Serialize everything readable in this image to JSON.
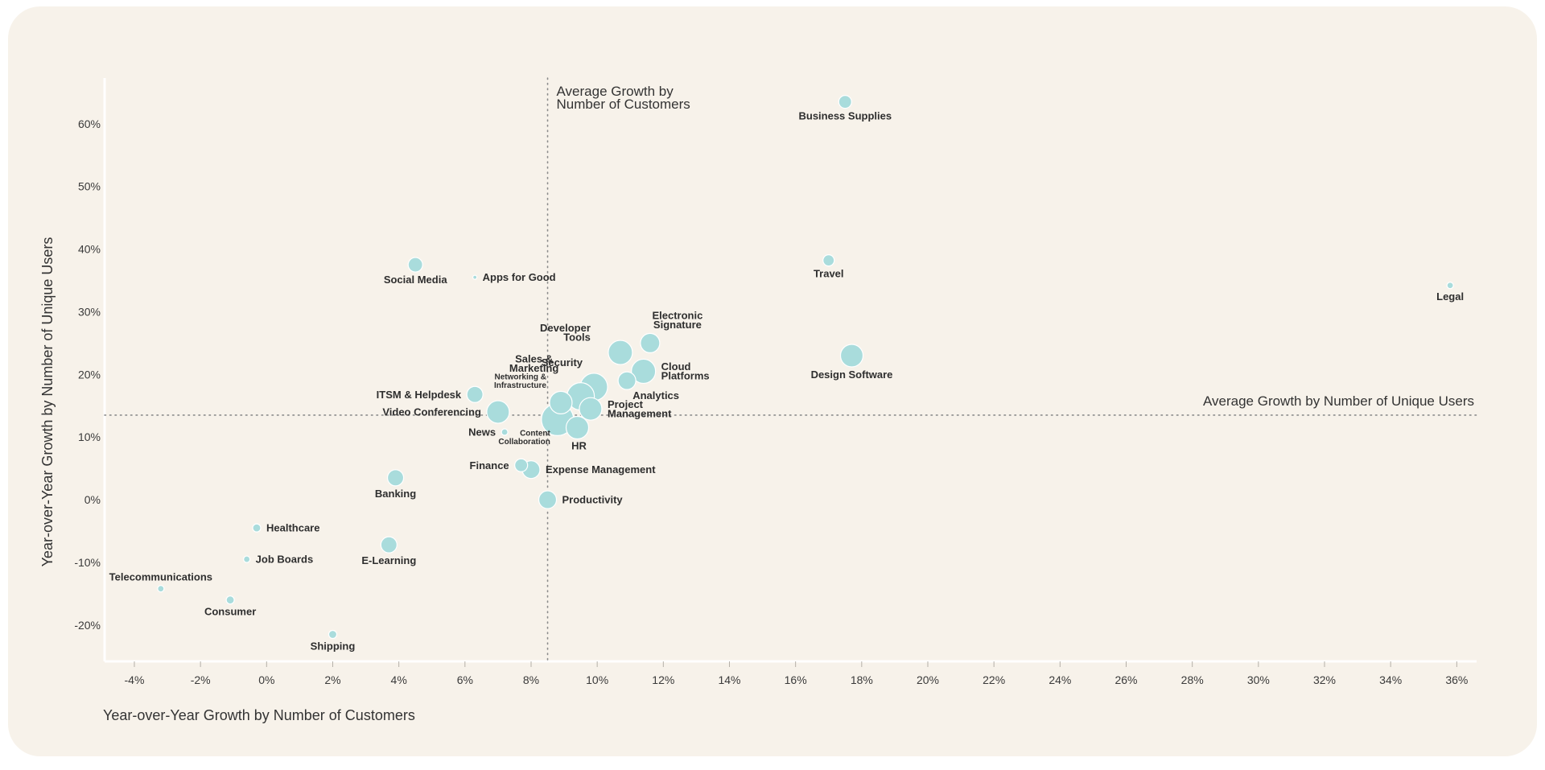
{
  "colors": {
    "background": "#f7f2ea",
    "bubble": "#a9dcdc",
    "text": "#2e2e2e"
  },
  "chart_data": {
    "type": "scatter",
    "title": "",
    "xlabel": "Year-over-Year Growth by Number of Customers",
    "ylabel": "Year-over-Year Growth by Number of Unique Users",
    "xlim": [
      -4.9,
      36.6
    ],
    "ylim": [
      -25.8,
      67.3
    ],
    "xticks": [
      -4,
      -2,
      0,
      2,
      4,
      6,
      8,
      10,
      12,
      14,
      16,
      18,
      20,
      22,
      24,
      26,
      28,
      30,
      32,
      34,
      36
    ],
    "xtick_labels": [
      "-4%",
      "-2%",
      "0%",
      "2%",
      "4%",
      "6%",
      "8%",
      "10%",
      "12%",
      "14%",
      "16%",
      "18%",
      "20%",
      "22%",
      "24%",
      "26%",
      "28%",
      "30%",
      "32%",
      "34%",
      "36%"
    ],
    "yticks": [
      60,
      50,
      40,
      30,
      20,
      10,
      0,
      -10,
      -20
    ],
    "ytick_labels": [
      "60%",
      "50%",
      "40%",
      "30%",
      "20%",
      "10%",
      "0%",
      "-10%",
      "-20%"
    ],
    "grid": false,
    "reference_lines": [
      {
        "axis": "x",
        "value": 8.5,
        "label_lines": [
          "Average Growth by",
          "Number of Customers"
        ]
      },
      {
        "axis": "y",
        "value": 13.5,
        "label_lines": [
          "Average Growth by Number of Unique Users"
        ]
      }
    ],
    "points": [
      {
        "name": "Business Supplies",
        "label_lines": [
          "Business Supplies"
        ],
        "x": 17.5,
        "y": 63.5,
        "size": 8,
        "label_pos": "below"
      },
      {
        "name": "Travel",
        "label_lines": [
          "Travel"
        ],
        "x": 17.0,
        "y": 38.2,
        "size": 7,
        "label_pos": "below"
      },
      {
        "name": "Legal",
        "label_lines": [
          "Legal"
        ],
        "x": 35.8,
        "y": 34.2,
        "size": 4,
        "label_pos": "below"
      },
      {
        "name": "Design Software",
        "label_lines": [
          "Design Software"
        ],
        "x": 17.7,
        "y": 23.0,
        "size": 14,
        "label_pos": "below"
      },
      {
        "name": "Social Media",
        "label_lines": [
          "Social Media"
        ],
        "x": 4.5,
        "y": 37.5,
        "size": 9,
        "label_pos": "below"
      },
      {
        "name": "Apps for Good",
        "label_lines": [
          "Apps for Good"
        ],
        "x": 6.3,
        "y": 35.5,
        "size": 2.5,
        "label_pos": "right"
      },
      {
        "name": "Developer Tools",
        "label_lines": [
          "Developer",
          "Tools"
        ],
        "x": 10.7,
        "y": 23.5,
        "size": 15,
        "label_pos": "upper-left"
      },
      {
        "name": "Electronic Signature",
        "label_lines": [
          "Electronic",
          "Signature"
        ],
        "x": 11.6,
        "y": 25.0,
        "size": 12,
        "label_pos": "above"
      },
      {
        "name": "Cloud Platforms",
        "label_lines": [
          "Cloud",
          "Platforms"
        ],
        "x": 11.4,
        "y": 20.5,
        "size": 15,
        "label_pos": "right"
      },
      {
        "name": "Analytics",
        "label_lines": [
          "Analytics"
        ],
        "x": 10.9,
        "y": 19.0,
        "size": 11,
        "label_pos": "below"
      },
      {
        "name": "Security",
        "label_lines": [
          "Security"
        ],
        "x": 9.9,
        "y": 18.0,
        "size": 17,
        "label_pos": "upper-left"
      },
      {
        "name": "Sales & Marketing",
        "label_lines": [
          "Sales &",
          "Marketing"
        ],
        "x": 9.5,
        "y": 16.5,
        "size": 17,
        "label_pos": "upper-left"
      },
      {
        "name": "Networking & Infrastructure",
        "label_lines": [
          "Networking &",
          "Infrastructure"
        ],
        "x": 8.9,
        "y": 15.5,
        "size": 14,
        "label_pos": "upper-left"
      },
      {
        "name": "ITSM & Helpdesk",
        "label_lines": [
          "ITSM & Helpdesk"
        ],
        "x": 6.3,
        "y": 16.8,
        "size": 10,
        "label_pos": "left"
      },
      {
        "name": "Video Conferencing",
        "label_lines": [
          "Video Conferencing"
        ],
        "x": 7.0,
        "y": 14.0,
        "size": 14,
        "label_pos": "left"
      },
      {
        "name": "Project Management",
        "label_lines": [
          "Project",
          "Management"
        ],
        "x": 9.8,
        "y": 14.5,
        "size": 14,
        "label_pos": "right"
      },
      {
        "name": "HR",
        "label_lines": [
          "HR"
        ],
        "x": 9.4,
        "y": 11.5,
        "size": 14,
        "label_pos": "below"
      },
      {
        "name": "Content Collaboration",
        "label_lines": [
          "Content",
          "Collaboration"
        ],
        "x": 8.8,
        "y": 12.8,
        "size": 20,
        "label_pos": "lower-left"
      },
      {
        "name": "News",
        "label_lines": [
          "News"
        ],
        "x": 7.2,
        "y": 10.8,
        "size": 4,
        "label_pos": "left"
      },
      {
        "name": "Finance",
        "label_lines": [
          "Finance"
        ],
        "x": 7.7,
        "y": 5.5,
        "size": 8,
        "label_pos": "left"
      },
      {
        "name": "Expense Management",
        "label_lines": [
          "Expense Management"
        ],
        "x": 8.0,
        "y": 4.8,
        "size": 11,
        "label_pos": "right"
      },
      {
        "name": "Banking",
        "label_lines": [
          "Banking"
        ],
        "x": 3.9,
        "y": 3.5,
        "size": 10,
        "label_pos": "below"
      },
      {
        "name": "Productivity",
        "label_lines": [
          "Productivity"
        ],
        "x": 8.5,
        "y": 0.0,
        "size": 11,
        "label_pos": "right"
      },
      {
        "name": "Healthcare",
        "label_lines": [
          "Healthcare"
        ],
        "x": -0.3,
        "y": -4.5,
        "size": 5,
        "label_pos": "right"
      },
      {
        "name": "E-Learning",
        "label_lines": [
          "E-Learning"
        ],
        "x": 3.7,
        "y": -7.2,
        "size": 10,
        "label_pos": "below"
      },
      {
        "name": "Job Boards",
        "label_lines": [
          "Job Boards"
        ],
        "x": -0.6,
        "y": -9.5,
        "size": 4,
        "label_pos": "right"
      },
      {
        "name": "Telecommunications",
        "label_lines": [
          "Telecommunications"
        ],
        "x": -3.2,
        "y": -14.2,
        "size": 4,
        "label_pos": "above"
      },
      {
        "name": "Consumer",
        "label_lines": [
          "Consumer"
        ],
        "x": -1.1,
        "y": -16.0,
        "size": 5,
        "label_pos": "below"
      },
      {
        "name": "Shipping",
        "label_lines": [
          "Shipping"
        ],
        "x": 2.0,
        "y": -21.5,
        "size": 5,
        "label_pos": "below"
      }
    ]
  }
}
